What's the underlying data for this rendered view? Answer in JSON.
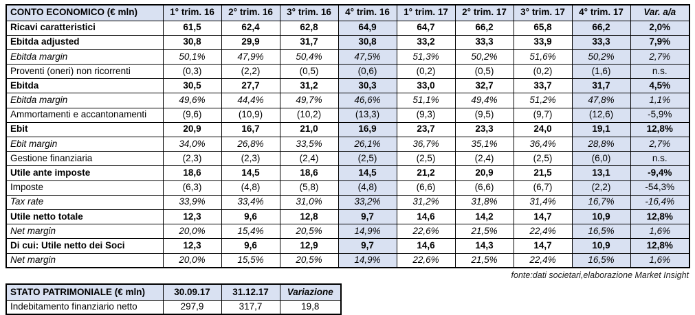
{
  "colors": {
    "highlight_bg": "#D9E1F2",
    "border": "#000000",
    "text": "#000000"
  },
  "income_statement": {
    "title": "CONTO ECONOMICO (€ mln)",
    "columns": [
      "1° trim. 16",
      "2° trim. 16",
      "3° trim. 16",
      "4° trim. 16",
      "1° trim. 17",
      "2° trim. 17",
      "3° trim. 17",
      "4° trim. 17"
    ],
    "var_column": "Var. a/a",
    "highlight_value_cols": [
      3,
      7
    ],
    "highlight_var_col": true,
    "rows": [
      {
        "label": "Ricavi caratteristici",
        "style": "bold",
        "values": [
          "61,5",
          "62,4",
          "62,8",
          "64,9",
          "64,7",
          "66,2",
          "65,8",
          "66,2"
        ],
        "var": "2,0%"
      },
      {
        "label": "Ebitda adjusted",
        "style": "bold",
        "values": [
          "30,8",
          "29,9",
          "31,7",
          "30,8",
          "33,2",
          "33,3",
          "33,9",
          "33,3"
        ],
        "var": "7,9%"
      },
      {
        "label": "Ebitda margin",
        "style": "italic",
        "values": [
          "50,1%",
          "47,9%",
          "50,4%",
          "47,5%",
          "51,3%",
          "50,2%",
          "51,6%",
          "50,2%"
        ],
        "var": "2,7%"
      },
      {
        "label": "Proventi (oneri) non ricorrenti",
        "style": "regular",
        "values": [
          "(0,3)",
          "(2,2)",
          "(0,5)",
          "(0,6)",
          "(0,2)",
          "(0,5)",
          "(0,2)",
          "(1,6)"
        ],
        "var": "n.s."
      },
      {
        "label": "Ebitda",
        "style": "bold",
        "values": [
          "30,5",
          "27,7",
          "31,2",
          "30,3",
          "33,0",
          "32,7",
          "33,7",
          "31,7"
        ],
        "var": "4,5%"
      },
      {
        "label": "Ebitda margin",
        "style": "italic",
        "values": [
          "49,6%",
          "44,4%",
          "49,7%",
          "46,6%",
          "51,1%",
          "49,4%",
          "51,2%",
          "47,8%"
        ],
        "var": "1,1%"
      },
      {
        "label": "Ammortamenti e accantonamenti",
        "style": "regular",
        "values": [
          "(9,6)",
          "(10,9)",
          "(10,2)",
          "(13,3)",
          "(9,3)",
          "(9,5)",
          "(9,7)",
          "(12,6)"
        ],
        "var": "-5,9%"
      },
      {
        "label": "Ebit",
        "style": "bold",
        "values": [
          "20,9",
          "16,7",
          "21,0",
          "16,9",
          "23,7",
          "23,3",
          "24,0",
          "19,1"
        ],
        "var": "12,8%"
      },
      {
        "label": "Ebit margin",
        "style": "italic",
        "values": [
          "34,0%",
          "26,8%",
          "33,5%",
          "26,1%",
          "36,7%",
          "35,1%",
          "36,4%",
          "28,8%"
        ],
        "var": "2,7%"
      },
      {
        "label": "Gestione finanziaria",
        "style": "regular",
        "values": [
          "(2,3)",
          "(2,3)",
          "(2,4)",
          "(2,5)",
          "(2,5)",
          "(2,4)",
          "(2,5)",
          "(6,0)"
        ],
        "var": "n.s."
      },
      {
        "label": "Utile ante imposte",
        "style": "bold",
        "values": [
          "18,6",
          "14,5",
          "18,6",
          "14,5",
          "21,2",
          "20,9",
          "21,5",
          "13,1"
        ],
        "var": "-9,4%"
      },
      {
        "label": "Imposte",
        "style": "regular",
        "values": [
          "(6,3)",
          "(4,8)",
          "(5,8)",
          "(4,8)",
          "(6,6)",
          "(6,6)",
          "(6,7)",
          "(2,2)"
        ],
        "var": "-54,3%"
      },
      {
        "label": "Tax rate",
        "style": "italic",
        "values": [
          "33,9%",
          "33,4%",
          "31,0%",
          "33,2%",
          "31,2%",
          "31,8%",
          "31,4%",
          "16,7%"
        ],
        "var": "-16,4%"
      },
      {
        "label": "Utile netto totale",
        "style": "bold",
        "values": [
          "12,3",
          "9,6",
          "12,8",
          "9,7",
          "14,6",
          "14,2",
          "14,7",
          "10,9"
        ],
        "var": "12,8%"
      },
      {
        "label": "Net margin",
        "style": "italic",
        "values": [
          "20,0%",
          "15,4%",
          "20,5%",
          "14,9%",
          "22,6%",
          "21,5%",
          "22,4%",
          "16,5%"
        ],
        "var": "1,6%"
      },
      {
        "label": "Di cui: Utile netto dei Soci",
        "style": "bold",
        "values": [
          "12,3",
          "9,6",
          "12,9",
          "9,7",
          "14,6",
          "14,3",
          "14,7",
          "10,9"
        ],
        "var": "12,8%"
      },
      {
        "label": "Net margin",
        "style": "italic",
        "values": [
          "20,0%",
          "15,5%",
          "20,5%",
          "14,9%",
          "22,6%",
          "21,5%",
          "22,4%",
          "16,5%"
        ],
        "var": "1,6%"
      }
    ]
  },
  "source_note": "fonte:dati societari,elaborazione Market Insight",
  "balance_sheet": {
    "title": "STATO PATRIMONIALE (€ mln)",
    "columns": [
      "30.09.17",
      "31.12.17"
    ],
    "var_column": "Variazione",
    "highlight_value_cols": [],
    "highlight_var_col": false,
    "rows": [
      {
        "label": "Indebitamento finanziario netto",
        "style": "regular",
        "values": [
          "297,9",
          "317,7"
        ],
        "var": "19,8"
      }
    ]
  }
}
